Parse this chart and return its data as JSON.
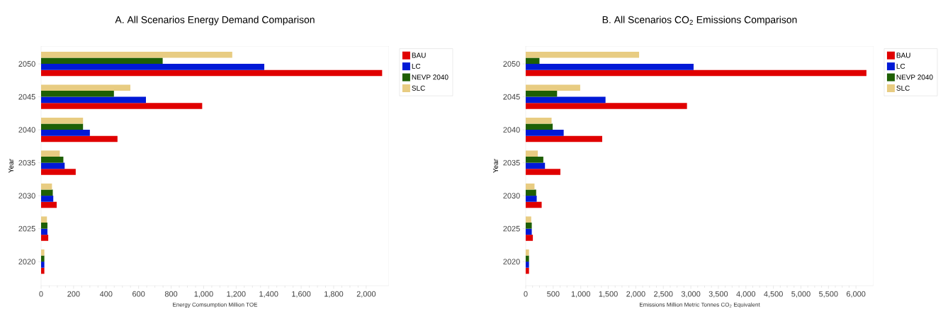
{
  "chart_data": [
    {
      "type": "bar",
      "orientation": "horizontal",
      "title": "A.  All Scenarios Energy Demand Comparison",
      "xlabel": "Energy Comsumption Million TOE",
      "ylabel": "Year",
      "categories": [
        "2050",
        "2045",
        "2040",
        "2035",
        "2030",
        "2025",
        "2020"
      ],
      "series": [
        {
          "name": "BAU",
          "color": "#e00000",
          "values": [
            2098,
            991,
            470,
            213,
            96,
            44,
            20
          ]
        },
        {
          "name": "LC",
          "color": "#0019d6",
          "values": [
            1373,
            645,
            300,
            145,
            75,
            39,
            20
          ]
        },
        {
          "name": "NEVP 2040",
          "color": "#1e5f05",
          "values": [
            748,
            448,
            258,
            137,
            72,
            39,
            20
          ]
        },
        {
          "name": "SLC",
          "color": "#e8cc82",
          "values": [
            1176,
            549,
            258,
            115,
            67,
            36,
            20
          ]
        }
      ],
      "xlim": [
        0,
        2140
      ],
      "xticks": [
        0,
        200,
        400,
        600,
        800,
        {
          "value": 1000,
          "label": "1,000"
        },
        {
          "value": 1200,
          "label": "1,200"
        },
        {
          "value": 1400,
          "label": "1,400"
        },
        {
          "value": 1600,
          "label": "1,600"
        },
        {
          "value": 1800,
          "label": "1,800"
        },
        {
          "value": 2000,
          "label": "2,000"
        }
      ],
      "legend": "right",
      "grid": false
    },
    {
      "type": "bar",
      "orientation": "horizontal",
      "title": "B.  All Scenarios CO$_{2}$ Emissions Comparison",
      "xlabel": "Emissions Million Metric Tonnes CO$_{2}$ Equivalent",
      "ylabel": "Year",
      "categories": [
        "2050",
        "2045",
        "2040",
        "2035",
        "2030",
        "2025",
        "2020"
      ],
      "series": [
        {
          "name": "BAU",
          "color": "#e00000",
          "values": [
            6190,
            2930,
            1390,
            630,
            290,
            130,
            60
          ]
        },
        {
          "name": "LC",
          "color": "#0019d6",
          "values": [
            3050,
            1450,
            690,
            350,
            200,
            110,
            60
          ]
        },
        {
          "name": "NEVP 2040",
          "color": "#1e5f05",
          "values": [
            250,
            570,
            490,
            320,
            190,
            110,
            60
          ]
        },
        {
          "name": "SLC",
          "color": "#e8cc82",
          "values": [
            2060,
            990,
            470,
            220,
            160,
            100,
            60
          ]
        }
      ],
      "xlim": [
        0,
        6320
      ],
      "xticks": [
        0,
        500,
        {
          "value": 1000,
          "label": "1,000"
        },
        {
          "value": 1500,
          "label": "1,500"
        },
        {
          "value": 2000,
          "label": "2,000"
        },
        {
          "value": 2500,
          "label": "2,500"
        },
        {
          "value": 3000,
          "label": "3,000"
        },
        {
          "value": 3500,
          "label": "3,500"
        },
        {
          "value": 4000,
          "label": "4,000"
        },
        {
          "value": 4500,
          "label": "4,500"
        },
        {
          "value": 5000,
          "label": "5,000"
        },
        {
          "value": 5500,
          "label": "5,500"
        },
        {
          "value": 6000,
          "label": "6,000"
        }
      ],
      "legend": "right",
      "grid": false
    }
  ]
}
